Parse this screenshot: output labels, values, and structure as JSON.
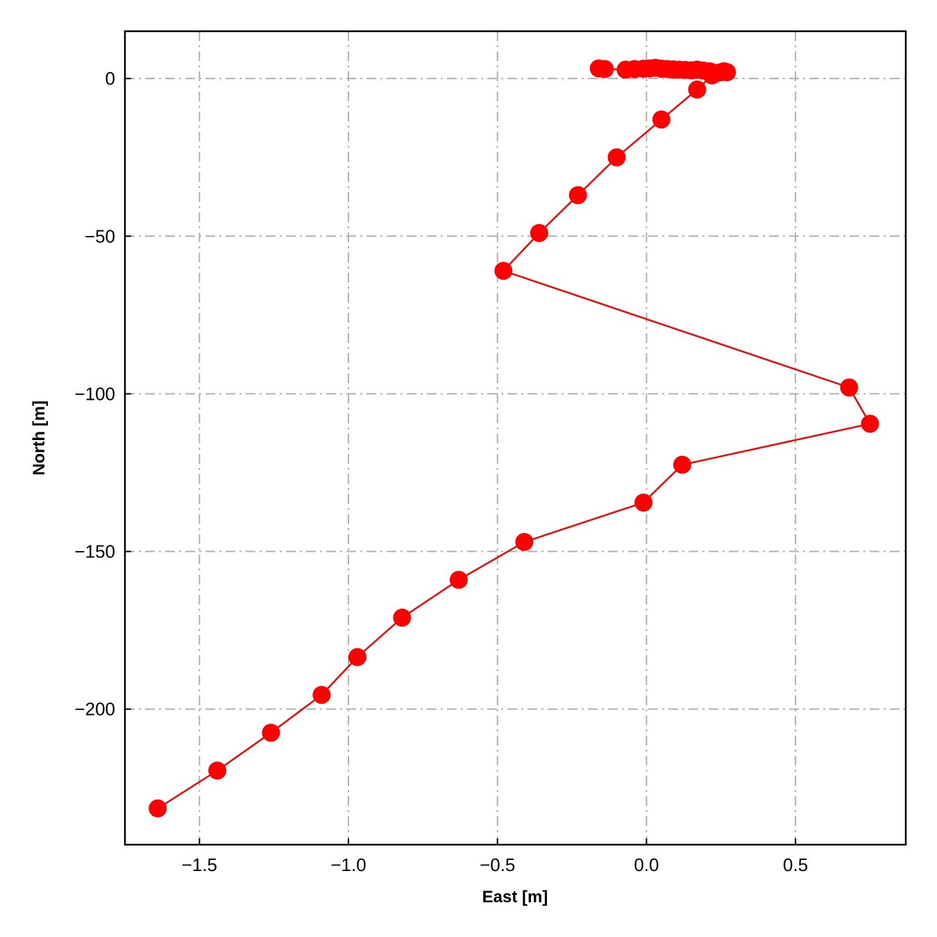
{
  "chart_data": {
    "type": "scatter",
    "xlabel": "East [m]",
    "ylabel": "North [m]",
    "xlim": [
      -1.75,
      0.87
    ],
    "ylim": [
      -243,
      15
    ],
    "xticks": [
      -1.5,
      -1.0,
      -0.5,
      0.0,
      0.5
    ],
    "xtick_labels": [
      "−1.5",
      "−1.0",
      "−0.5",
      "0.0",
      "0.5"
    ],
    "yticks": [
      0,
      -50,
      -100,
      -150,
      -200
    ],
    "ytick_labels": [
      "0",
      "−50",
      "−100",
      "−150",
      "−200"
    ],
    "grid": true,
    "grid_style": "dash-dot",
    "color": "#ff0000",
    "line_color": "#e01010",
    "series": [
      {
        "markers": "circle",
        "x": [
          -0.16,
          -0.14,
          -0.07,
          -0.04,
          -0.01,
          0.01,
          0.03,
          0.05,
          0.07,
          0.09,
          0.11,
          0.13,
          0.15,
          0.17,
          0.19,
          0.21,
          0.22,
          0.23,
          0.25,
          0.26,
          0.27,
          0.22,
          0.17,
          0.05,
          -0.1,
          -0.23,
          -0.36,
          -0.48,
          0.68,
          0.75,
          0.12,
          -0.01,
          -0.41,
          -0.63,
          -0.82,
          -0.97,
          -1.09,
          -1.26,
          -1.44,
          -1.64
        ],
        "y": [
          3.2,
          3.0,
          2.8,
          3.0,
          3.1,
          3.2,
          3.4,
          3.1,
          3.0,
          2.9,
          2.8,
          2.7,
          2.6,
          2.8,
          2.5,
          2.3,
          2.0,
          1.5,
          2.0,
          2.3,
          2.0,
          1.0,
          -3.5,
          -13.0,
          -25.0,
          -37.0,
          -49.0,
          -61.0,
          -98.0,
          -109.5,
          -122.5,
          -134.5,
          -147.0,
          -159.0,
          -171.0,
          -183.5,
          -195.5,
          -207.5,
          -219.5,
          -231.5
        ]
      }
    ]
  }
}
